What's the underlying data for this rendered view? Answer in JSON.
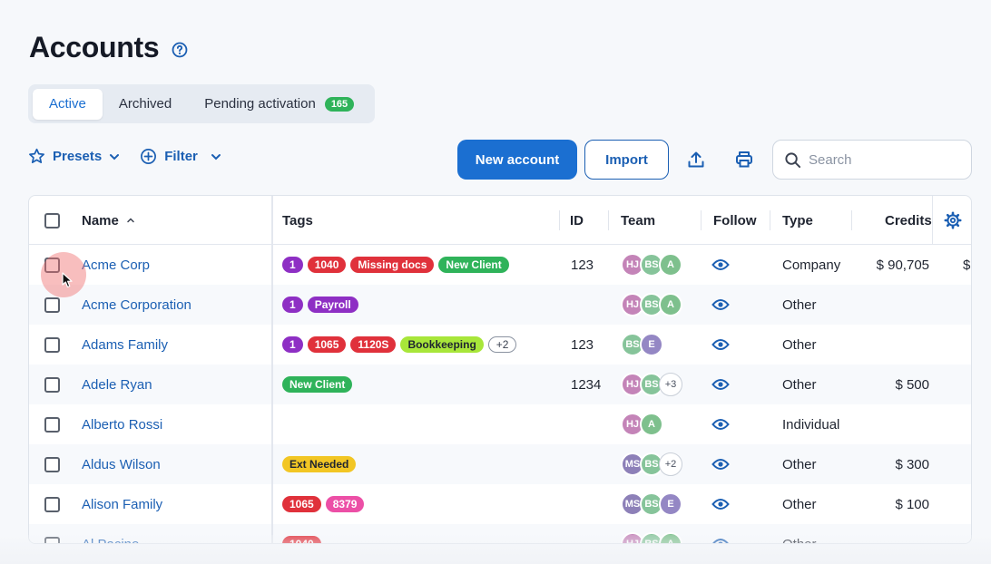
{
  "page": {
    "title": "Accounts"
  },
  "tabs": [
    {
      "label": "Active",
      "active": true
    },
    {
      "label": "Archived",
      "active": false
    },
    {
      "label": "Pending activation",
      "active": false,
      "badge": "165"
    }
  ],
  "toolbar": {
    "presets_label": "Presets",
    "filter_label": "Filter",
    "new_account_label": "New account",
    "import_label": "Import",
    "search_placeholder": "Search"
  },
  "table": {
    "columns": {
      "name": "Name",
      "tags": "Tags",
      "id": "ID",
      "team": "Team",
      "follow": "Follow",
      "type": "Type",
      "credits": "Credits"
    },
    "rows": [
      {
        "name": "Acme Corp",
        "tags": [
          {
            "label": "1",
            "color": "#8e2fc4"
          },
          {
            "label": "1040",
            "color": "#e0313b"
          },
          {
            "label": "Missing docs",
            "color": "#e0313b"
          },
          {
            "label": "New Client",
            "color": "#2fb35a"
          }
        ],
        "id": "123",
        "team": [
          {
            "initials": "HJ",
            "color": "#c484b8"
          },
          {
            "initials": "BS",
            "color": "#86c49a"
          },
          {
            "initials": "A",
            "color": "#7ec08d"
          }
        ],
        "type": "Company",
        "credits": "$  90,705",
        "extra": "$"
      },
      {
        "name": "Acme Corporation",
        "tags": [
          {
            "label": "1",
            "color": "#8e2fc4"
          },
          {
            "label": "Payroll",
            "color": "#8e2fc4"
          }
        ],
        "id": "",
        "team": [
          {
            "initials": "HJ",
            "color": "#c484b8"
          },
          {
            "initials": "BS",
            "color": "#86c49a"
          },
          {
            "initials": "A",
            "color": "#7ec08d"
          }
        ],
        "type": "Other",
        "credits": "",
        "extra": ""
      },
      {
        "name": "Adams Family",
        "tags": [
          {
            "label": "1",
            "color": "#8e2fc4"
          },
          {
            "label": "1065",
            "color": "#e0313b"
          },
          {
            "label": "1120S",
            "color": "#e0313b"
          },
          {
            "label": "Bookkeeping",
            "color": "#a8e63a",
            "dark": true
          },
          {
            "label": "+2",
            "outline": true
          }
        ],
        "id": "123",
        "team": [
          {
            "initials": "BS",
            "color": "#86c49a"
          },
          {
            "initials": "E",
            "color": "#9487c4"
          }
        ],
        "type": "Other",
        "credits": "",
        "extra": ""
      },
      {
        "name": "Adele Ryan",
        "tags": [
          {
            "label": "New Client",
            "color": "#2fb35a"
          }
        ],
        "id": "1234",
        "team": [
          {
            "initials": "HJ",
            "color": "#c484b8"
          },
          {
            "initials": "BS",
            "color": "#86c49a"
          },
          {
            "initials": "+3",
            "more": true
          }
        ],
        "type": "Other",
        "credits": "$  500",
        "extra": ""
      },
      {
        "name": "Alberto Rossi",
        "tags": [],
        "id": "",
        "team": [
          {
            "initials": "HJ",
            "color": "#c484b8"
          },
          {
            "initials": "A",
            "color": "#7ec08d"
          }
        ],
        "type": "Individual",
        "credits": "",
        "extra": ""
      },
      {
        "name": "Aldus Wilson",
        "tags": [
          {
            "label": "Ext Needed",
            "color": "#f2c624",
            "dark": true
          }
        ],
        "id": "",
        "team": [
          {
            "initials": "MS",
            "color": "#8d80b8"
          },
          {
            "initials": "BS",
            "color": "#86c49a"
          },
          {
            "initials": "+2",
            "more": true
          }
        ],
        "type": "Other",
        "credits": "$  300",
        "extra": ""
      },
      {
        "name": "Alison Family",
        "tags": [
          {
            "label": "1065",
            "color": "#e0313b"
          },
          {
            "label": "8379",
            "color": "#ec4fa6"
          }
        ],
        "id": "",
        "team": [
          {
            "initials": "MS",
            "color": "#8d80b8"
          },
          {
            "initials": "BS",
            "color": "#86c49a"
          },
          {
            "initials": "E",
            "color": "#9487c4"
          }
        ],
        "type": "Other",
        "credits": "$  100",
        "extra": ""
      },
      {
        "name": "Al Pacino",
        "tags": [
          {
            "label": "1040",
            "color": "#e0313b"
          }
        ],
        "id": "",
        "team": [
          {
            "initials": "HJ",
            "color": "#c484b8"
          },
          {
            "initials": "BS",
            "color": "#86c49a"
          },
          {
            "initials": "A",
            "color": "#7ec08d"
          }
        ],
        "type": "Other",
        "credits": "",
        "extra": ""
      }
    ]
  },
  "colors": {
    "accent": "#1b6fd1",
    "link": "#1b5fb3"
  }
}
